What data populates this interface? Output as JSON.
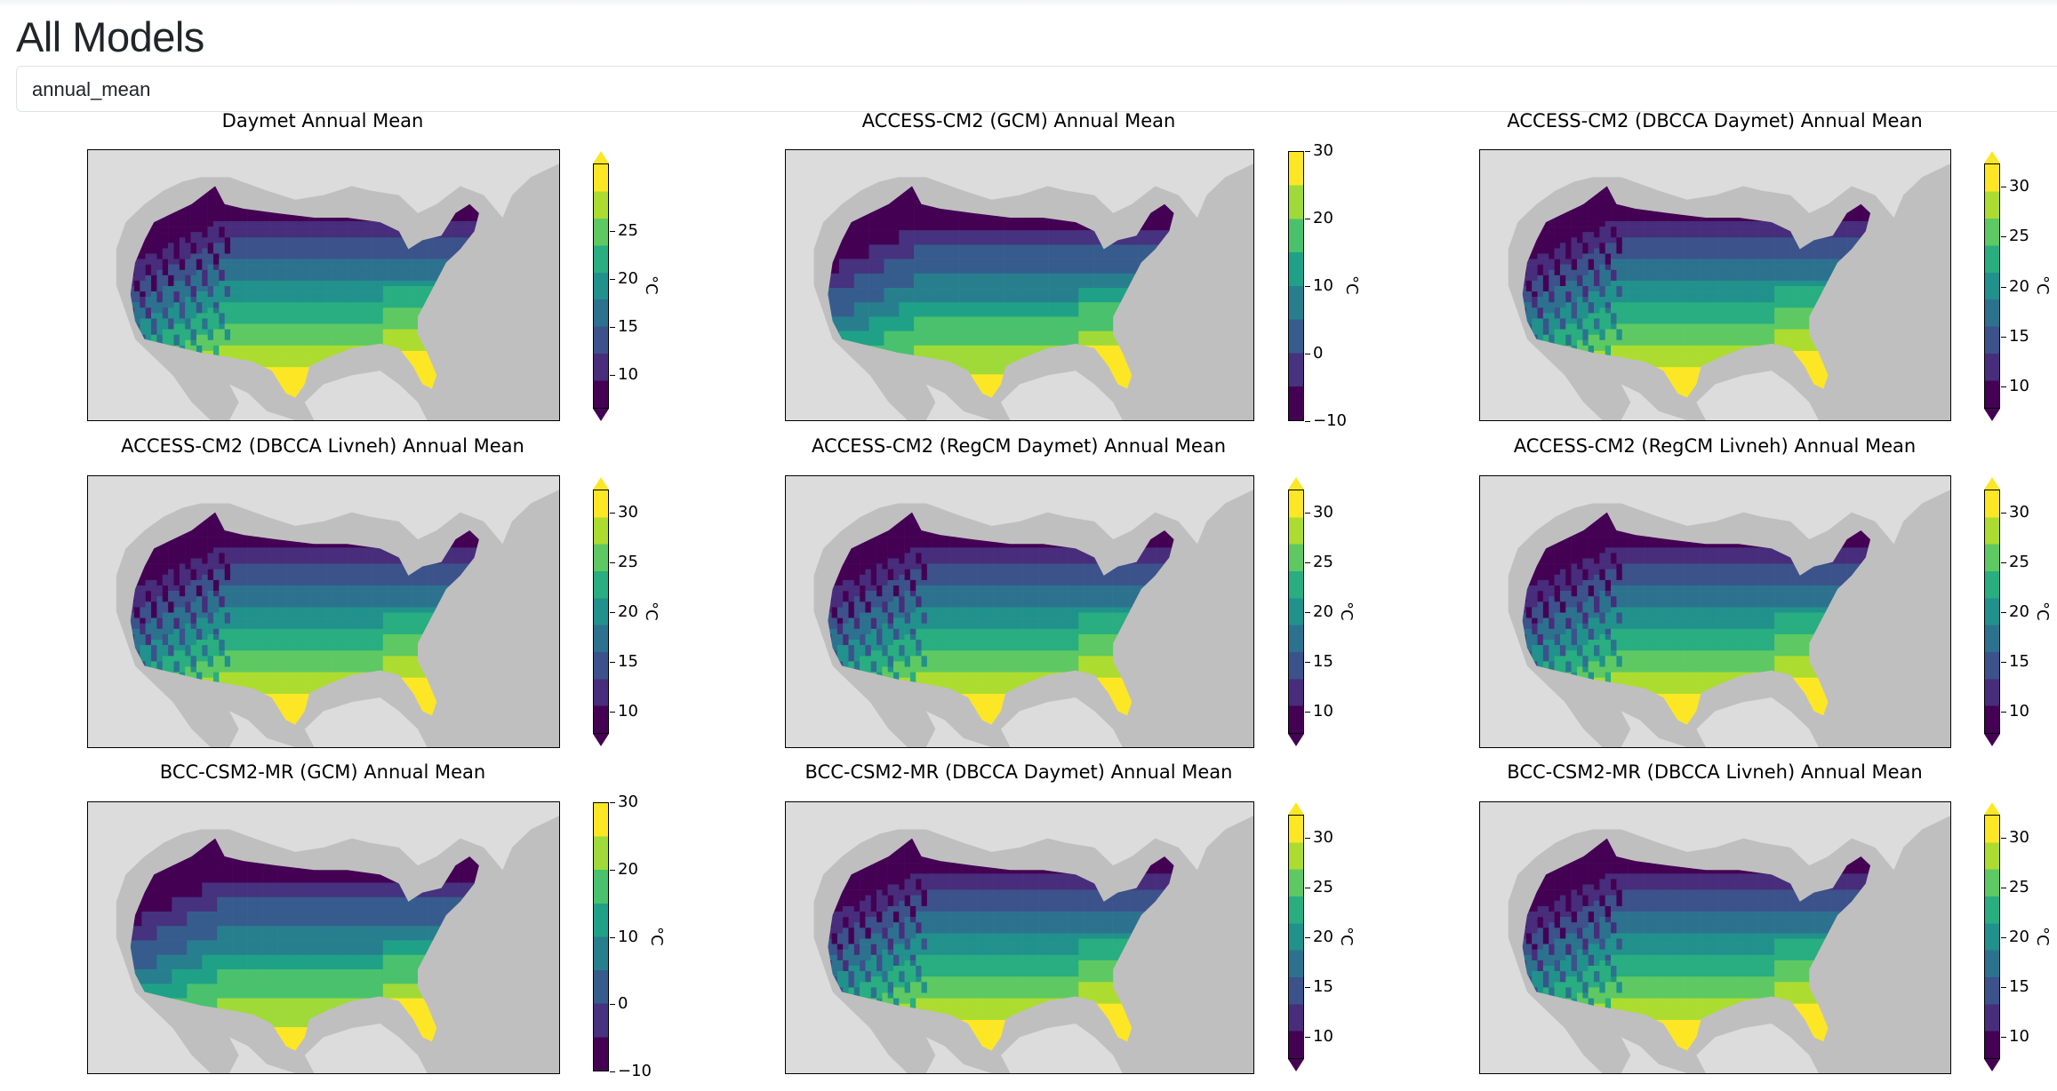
{
  "page": {
    "title": "All Models"
  },
  "variable_select": {
    "value": "annual_mean"
  },
  "colormap": {
    "fine": [
      "#440154",
      "#472d7b",
      "#3b528b",
      "#2c728e",
      "#21918c",
      "#28ae80",
      "#5ec962",
      "#addc30",
      "#fde725"
    ],
    "coarse": [
      "#440154",
      "#46327e",
      "#365c8d",
      "#277f8e",
      "#1fa187",
      "#4ac16d",
      "#a0da39",
      "#fde725"
    ],
    "ocean": "#bfbfbf",
    "land": "#dcdcdc"
  },
  "panels": [
    {
      "title": "Daymet Annual Mean",
      "unit": "°C",
      "ticks": [
        "10",
        "15",
        "20",
        "25"
      ],
      "scale": "fine",
      "resolution": "fine",
      "extend_top": true,
      "extend_bottom": true
    },
    {
      "title": "ACCESS-CM2 (GCM) Annual Mean",
      "unit": "°C",
      "ticks": [
        "−10",
        "0",
        "10",
        "20",
        "30"
      ],
      "scale": "coarse",
      "resolution": "coarse",
      "extend_top": false,
      "extend_bottom": false
    },
    {
      "title": "ACCESS-CM2 (DBCCA Daymet) Annual Mean",
      "unit": "°C",
      "ticks": [
        "10",
        "15",
        "20",
        "25",
        "30"
      ],
      "scale": "fine",
      "resolution": "fine",
      "extend_top": true,
      "extend_bottom": true
    },
    {
      "title": "ACCESS-CM2 (DBCCA Livneh) Annual Mean",
      "unit": "°C",
      "ticks": [
        "10",
        "15",
        "20",
        "25",
        "30"
      ],
      "scale": "fine",
      "resolution": "fine",
      "extend_top": true,
      "extend_bottom": true
    },
    {
      "title": "ACCESS-CM2 (RegCM Daymet) Annual Mean",
      "unit": "°C",
      "ticks": [
        "10",
        "15",
        "20",
        "25",
        "30"
      ],
      "scale": "fine",
      "resolution": "fine",
      "extend_top": true,
      "extend_bottom": true
    },
    {
      "title": "ACCESS-CM2 (RegCM Livneh) Annual Mean",
      "unit": "°C",
      "ticks": [
        "10",
        "15",
        "20",
        "25",
        "30"
      ],
      "scale": "fine",
      "resolution": "fine",
      "extend_top": true,
      "extend_bottom": true
    },
    {
      "title": "BCC-CSM2-MR (GCM) Annual Mean",
      "unit": "°C",
      "ticks": [
        "−10",
        "0",
        "10",
        "20",
        "30"
      ],
      "scale": "coarse",
      "resolution": "coarse",
      "extend_top": false,
      "extend_bottom": false
    },
    {
      "title": "BCC-CSM2-MR (DBCCA Daymet) Annual Mean",
      "unit": "°C",
      "ticks": [
        "10",
        "15",
        "20",
        "25",
        "30"
      ],
      "scale": "fine",
      "resolution": "fine",
      "extend_top": true,
      "extend_bottom": true
    },
    {
      "title": "BCC-CSM2-MR (DBCCA Livneh) Annual Mean",
      "unit": "°C",
      "ticks": [
        "10",
        "15",
        "20",
        "25",
        "30"
      ],
      "scale": "fine",
      "resolution": "fine",
      "extend_top": true,
      "extend_bottom": true
    }
  ]
}
